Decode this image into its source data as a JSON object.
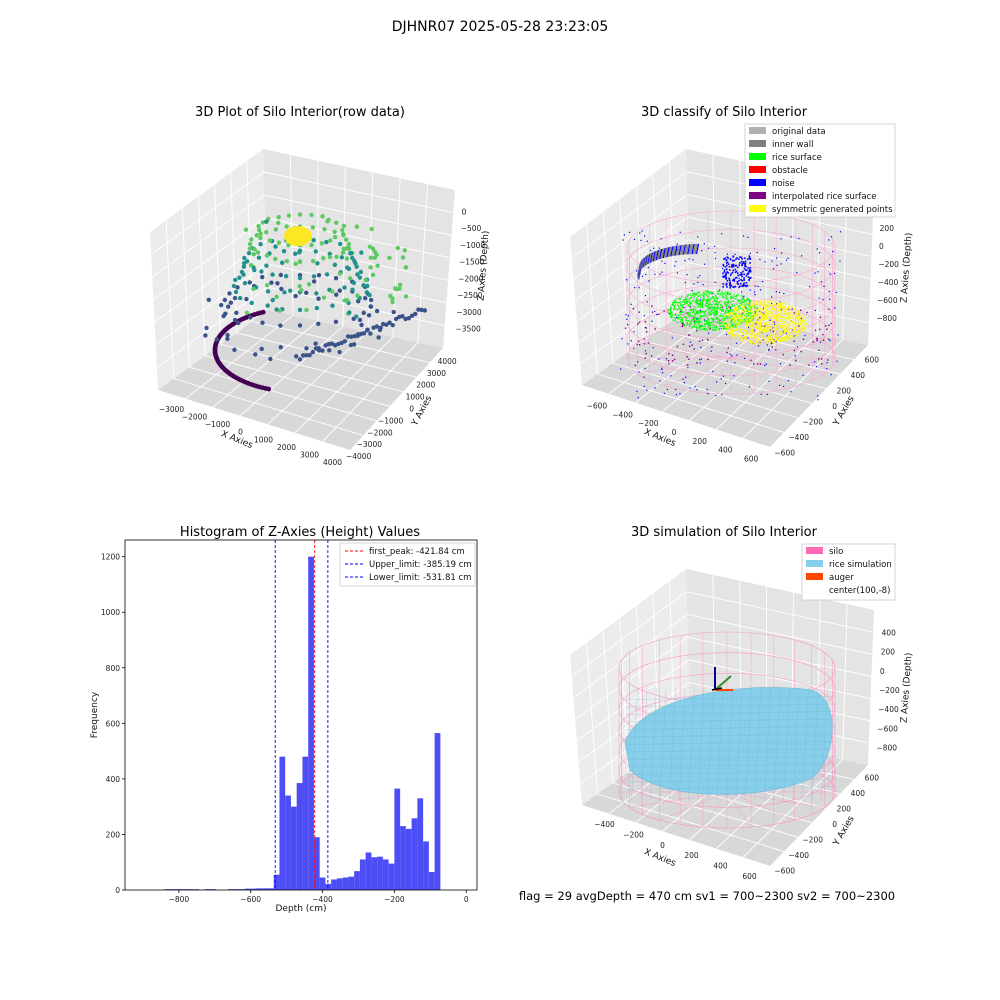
{
  "figure": {
    "suptitle": "DJHNR07 2025-05-28 23:23:05",
    "footer": "flag = 29   avgDepth = 470 cm   sv1 = 700~2300   sv2 = 700~2300"
  },
  "colors": {
    "hist_bar": "#4d4df5",
    "first_peak": "#ff0000",
    "limit_line": "#0000ff",
    "pane_left": "#ececec",
    "pane_right": "#e4e4e4",
    "pane_floor": "#d8d8d8",
    "silo_wire": "#ff8ac0",
    "rice_sim": "#87ceeb",
    "auger": "#ff4500"
  },
  "chart_data": [
    {
      "type": "scatter",
      "panel": "raw",
      "title": "3D Plot of Silo Interior(row data)",
      "xlabel": "X Axies",
      "ylabel": "Y Axies",
      "zlabel": "Z Axies (Depth)",
      "xticks": [
        "−3000",
        "−2000",
        "−1000",
        "0",
        "1000",
        "2000",
        "3000",
        "4000"
      ],
      "yticks": [
        "−4000",
        "−3000",
        "−2000",
        "−1000",
        "0",
        "1000",
        "2000",
        "3000",
        "4000"
      ],
      "zticks": [
        "0",
        "−500",
        "−1000",
        "−1500",
        "−2000",
        "−2500",
        "−3000",
        "−3500"
      ],
      "xlim": [
        -3500,
        4000
      ],
      "ylim": [
        -4200,
        4200
      ],
      "zlim": [
        -3800,
        0
      ],
      "colormap": [
        "#440154",
        "#3b528b",
        "#21918c",
        "#5ec962",
        "#fde725"
      ]
    },
    {
      "type": "scatter",
      "panel": "classify",
      "title": "3D classify of Silo Interior",
      "xlabel": "X Axies",
      "ylabel": "Y Axies",
      "zlabel": "Z Axies (Depth)",
      "xticks": [
        "−600",
        "−400",
        "−200",
        "0",
        "200",
        "400",
        "600"
      ],
      "yticks": [
        "−600",
        "−400",
        "−200",
        "0",
        "200",
        "400",
        "600"
      ],
      "zticks": [
        "200",
        "0",
        "−200",
        "−400",
        "−600",
        "−800"
      ],
      "xlim": [
        -650,
        700
      ],
      "ylim": [
        -650,
        700
      ],
      "zlim": [
        -900,
        300
      ],
      "legend": [
        {
          "name": "original data",
          "color": "#b0b0b0"
        },
        {
          "name": "inner wall",
          "color": "#808080"
        },
        {
          "name": "rice surface",
          "color": "#00ff00"
        },
        {
          "name": "obstacle",
          "color": "#ff0000"
        },
        {
          "name": "noise",
          "color": "#0000ff"
        },
        {
          "name": "interpolated rice surface",
          "color": "#800080"
        },
        {
          "name": "symmetric generated points",
          "color": "#ffff00"
        }
      ]
    },
    {
      "type": "bar",
      "panel": "histogram",
      "title": "Histogram of Z-Axies (Height) Values",
      "xlabel": "Depth (cm)",
      "ylabel": "Frequency",
      "xlim": [
        -950,
        30
      ],
      "ylim": [
        0,
        1260
      ],
      "xticks": [
        -800,
        -600,
        -400,
        -200,
        0
      ],
      "xtick_labels": [
        "−800",
        "−600",
        "−400",
        "−200",
        "0"
      ],
      "yticks": [
        0,
        200,
        400,
        600,
        800,
        1000,
        1200
      ],
      "bin_width": 16,
      "bins": [
        [
          -840,
          3
        ],
        [
          -824,
          3
        ],
        [
          -808,
          3
        ],
        [
          -792,
          3
        ],
        [
          -776,
          3
        ],
        [
          -760,
          3
        ],
        [
          -728,
          3
        ],
        [
          -712,
          3
        ],
        [
          -664,
          3
        ],
        [
          -648,
          3
        ],
        [
          -632,
          3
        ],
        [
          -616,
          5
        ],
        [
          -600,
          5
        ],
        [
          -584,
          6
        ],
        [
          -568,
          6
        ],
        [
          -552,
          6
        ],
        [
          -536,
          55
        ],
        [
          -520,
          480
        ],
        [
          -504,
          340
        ],
        [
          -488,
          300
        ],
        [
          -472,
          385
        ],
        [
          -456,
          480
        ],
        [
          -440,
          1200
        ],
        [
          -424,
          190
        ],
        [
          -408,
          45
        ],
        [
          -392,
          22
        ],
        [
          -376,
          38
        ],
        [
          -360,
          42
        ],
        [
          -344,
          45
        ],
        [
          -328,
          48
        ],
        [
          -312,
          68
        ],
        [
          -296,
          110
        ],
        [
          -280,
          135
        ],
        [
          -264,
          118
        ],
        [
          -248,
          120
        ],
        [
          -232,
          110
        ],
        [
          -216,
          95
        ],
        [
          -200,
          365
        ],
        [
          -184,
          230
        ],
        [
          -168,
          220
        ],
        [
          -152,
          258
        ],
        [
          -136,
          330
        ],
        [
          -120,
          175
        ],
        [
          -104,
          65
        ],
        [
          -88,
          565
        ]
      ],
      "vlines": [
        {
          "x": -421.84,
          "style": "first_peak"
        },
        {
          "x": -385.19,
          "style": "limit"
        },
        {
          "x": -531.81,
          "style": "limit"
        }
      ],
      "legend": [
        {
          "name": "first_peak: -421.84 cm"
        },
        {
          "name": "Upper_limit: -385.19 cm"
        },
        {
          "name": "Lower_limit: -531.81 cm"
        }
      ]
    },
    {
      "type": "surface",
      "panel": "simulation",
      "title": "3D simulation of Silo Interior",
      "xlabel": "X Axies",
      "ylabel": "Y Axies",
      "zlabel": "Z Axies (Depth)",
      "xticks": [
        "−400",
        "−200",
        "0",
        "200",
        "400",
        "600"
      ],
      "yticks": [
        "−600",
        "−400",
        "−200",
        "0",
        "200",
        "400",
        "600"
      ],
      "zticks": [
        "400",
        "200",
        "0",
        "−200",
        "−400",
        "−600",
        "−800"
      ],
      "xlim": [
        -500,
        700
      ],
      "ylim": [
        -650,
        700
      ],
      "zlim": [
        -900,
        500
      ],
      "legend": [
        {
          "name": "silo",
          "color": "#ff69b4"
        },
        {
          "name": "rice simulation",
          "color": "#87ceeb"
        },
        {
          "name": "auger",
          "color": "#ff4500"
        },
        {
          "name": "center(100,-8)",
          "color": "#ffffff"
        }
      ]
    }
  ]
}
